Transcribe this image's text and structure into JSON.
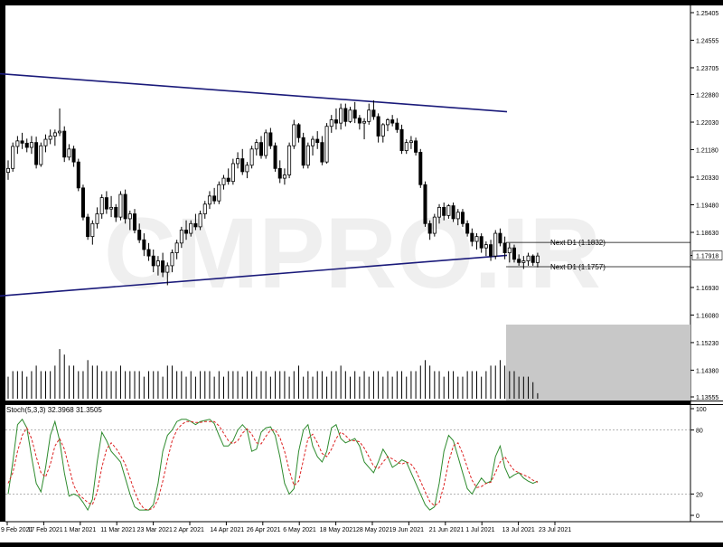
{
  "watermark": "CMPRO.IR",
  "colors": {
    "frame": "#000000",
    "background": "#ffffff",
    "candle": "#000000",
    "trendline": "#1a1a7a",
    "stoch_main": "#2e8b2e",
    "stoch_signal": "#dd2222",
    "level_line": "#9a9a9a",
    "shade": "#c8c8c8",
    "watermark": "#efefef"
  },
  "chart_data": [
    {
      "type": "candlestick",
      "title": "",
      "ylim": [
        1.13555,
        1.25405
      ],
      "ticks": [
        "1.25405",
        "1.24555",
        "1.23705",
        "1.22880",
        "1.22030",
        "1.21180",
        "1.20330",
        "1.19480",
        "1.18630",
        "1.17918",
        "1.16930",
        "1.16080",
        "1.15230",
        "1.14380",
        "1.13555"
      ],
      "current_price": "1.17918",
      "trendlines": [
        {
          "name": "upper",
          "start": [
            0,
            1.2352
          ],
          "end": [
            138,
            1.2235
          ]
        },
        {
          "name": "lower",
          "start": [
            0,
            1.1667
          ],
          "end": [
            138,
            1.1792
          ]
        }
      ],
      "horizontal_lines": [
        {
          "label": "Next D1 (1.1832)",
          "value": 1.1832
        },
        {
          "label": "Next D1 (1.1757)",
          "value": 1.1757
        }
      ],
      "candles": [
        [
          1.2048,
          1.2085,
          1.2025,
          1.206
        ],
        [
          1.206,
          1.214,
          1.205,
          1.2128
        ],
        [
          1.2128,
          1.216,
          1.2105,
          1.2145
        ],
        [
          1.2145,
          1.217,
          1.212,
          1.2138
        ],
        [
          1.2138,
          1.2152,
          1.211,
          1.2125
        ],
        [
          1.2125,
          1.216,
          1.2105,
          1.214
        ],
        [
          1.214,
          1.2158,
          1.206,
          1.2072
        ],
        [
          1.2072,
          1.214,
          1.2065,
          1.213
        ],
        [
          1.213,
          1.2165,
          1.211,
          1.215
        ],
        [
          1.215,
          1.218,
          1.2135,
          1.216
        ],
        [
          1.216,
          1.218,
          1.213,
          1.217
        ],
        [
          1.217,
          1.2245,
          1.216,
          1.2175
        ],
        [
          1.2175,
          1.219,
          1.208,
          1.2095
        ],
        [
          1.2095,
          1.2135,
          1.2085,
          1.212
        ],
        [
          1.212,
          1.213,
          1.2065,
          1.208
        ],
        [
          1.208,
          1.209,
          1.199,
          1.2
        ],
        [
          1.2,
          1.201,
          1.19,
          1.191
        ],
        [
          1.191,
          1.192,
          1.184,
          1.185
        ],
        [
          1.185,
          1.19,
          1.1825,
          1.189
        ],
        [
          1.189,
          1.194,
          1.1875,
          1.192
        ],
        [
          1.192,
          1.198,
          1.1905,
          1.197
        ],
        [
          1.197,
          1.199,
          1.192,
          1.1935
        ],
        [
          1.1935,
          1.1975,
          1.191,
          1.194
        ],
        [
          1.194,
          1.195,
          1.1895,
          1.191
        ],
        [
          1.191,
          1.199,
          1.19,
          1.198
        ],
        [
          1.198,
          1.1995,
          1.189,
          1.1905
        ],
        [
          1.1905,
          1.193,
          1.187,
          1.192
        ],
        [
          1.192,
          1.1935,
          1.186,
          1.187
        ],
        [
          1.187,
          1.189,
          1.183,
          1.184
        ],
        [
          1.184,
          1.186,
          1.179,
          1.181
        ],
        [
          1.181,
          1.183,
          1.1775,
          1.179
        ],
        [
          1.179,
          1.181,
          1.174,
          1.176
        ],
        [
          1.176,
          1.179,
          1.173,
          1.1775
        ],
        [
          1.1775,
          1.18,
          1.1725,
          1.174
        ],
        [
          1.174,
          1.177,
          1.17,
          1.176
        ],
        [
          1.176,
          1.181,
          1.174,
          1.18
        ],
        [
          1.18,
          1.184,
          1.178,
          1.183
        ],
        [
          1.183,
          1.188,
          1.1815,
          1.187
        ],
        [
          1.187,
          1.19,
          1.184,
          1.186
        ],
        [
          1.186,
          1.19,
          1.185,
          1.189
        ],
        [
          1.189,
          1.192,
          1.187,
          1.188
        ],
        [
          1.188,
          1.193,
          1.187,
          1.192
        ],
        [
          1.192,
          1.196,
          1.1905,
          1.195
        ],
        [
          1.195,
          1.199,
          1.1935,
          1.1975
        ],
        [
          1.1975,
          1.2,
          1.195,
          1.196
        ],
        [
          1.196,
          1.202,
          1.195,
          1.201
        ],
        [
          1.201,
          1.204,
          1.1995,
          1.203
        ],
        [
          1.203,
          1.206,
          1.201,
          1.202
        ],
        [
          1.202,
          1.209,
          1.201,
          1.2075
        ],
        [
          1.2075,
          1.211,
          1.206,
          1.209
        ],
        [
          1.209,
          1.212,
          1.204,
          1.205
        ],
        [
          1.205,
          1.208,
          1.203,
          1.207
        ],
        [
          1.207,
          1.213,
          1.206,
          1.212
        ],
        [
          1.212,
          1.215,
          1.21,
          1.214
        ],
        [
          1.214,
          1.216,
          1.209,
          1.21
        ],
        [
          1.21,
          1.218,
          1.209,
          1.217
        ],
        [
          1.217,
          1.2185,
          1.212,
          1.213
        ],
        [
          1.213,
          1.214,
          1.205,
          1.206
        ],
        [
          1.206,
          1.2085,
          1.2015,
          1.203
        ],
        [
          1.203,
          1.206,
          1.201,
          1.204
        ],
        [
          1.204,
          1.214,
          1.203,
          1.213
        ],
        [
          1.213,
          1.221,
          1.212,
          1.2195
        ],
        [
          1.2195,
          1.22,
          1.214,
          1.2155
        ],
        [
          1.2155,
          1.217,
          1.206,
          1.207
        ],
        [
          1.207,
          1.214,
          1.206,
          1.213
        ],
        [
          1.213,
          1.216,
          1.21,
          1.215
        ],
        [
          1.215,
          1.2175,
          1.212,
          1.214
        ],
        [
          1.214,
          1.216,
          1.207,
          1.208
        ],
        [
          1.208,
          1.22,
          1.2075,
          1.219
        ],
        [
          1.219,
          1.2225,
          1.217,
          1.221
        ],
        [
          1.221,
          1.2245,
          1.218,
          1.22
        ],
        [
          1.22,
          1.226,
          1.218,
          1.2245
        ],
        [
          1.2245,
          1.226,
          1.219,
          1.2205
        ],
        [
          1.2205,
          1.225,
          1.22,
          1.224
        ],
        [
          1.224,
          1.2265,
          1.22,
          1.2215
        ],
        [
          1.2215,
          1.2225,
          1.218,
          1.22
        ],
        [
          1.22,
          1.2215,
          1.215,
          1.2205
        ],
        [
          1.2205,
          1.226,
          1.2195,
          1.224
        ],
        [
          1.224,
          1.227,
          1.221,
          1.222
        ],
        [
          1.222,
          1.223,
          1.214,
          1.216
        ],
        [
          1.216,
          1.22,
          1.214,
          1.2195
        ],
        [
          1.2195,
          1.2215,
          1.2175,
          1.221
        ],
        [
          1.221,
          1.2225,
          1.219,
          1.22
        ],
        [
          1.22,
          1.2215,
          1.217,
          1.218
        ],
        [
          1.218,
          1.2195,
          1.2105,
          1.2115
        ],
        [
          1.2115,
          1.215,
          1.2105,
          1.214
        ],
        [
          1.214,
          1.216,
          1.212,
          1.2145
        ],
        [
          1.2145,
          1.2155,
          1.21,
          1.211
        ],
        [
          1.211,
          1.212,
          1.2,
          1.201
        ],
        [
          1.201,
          1.202,
          1.188,
          1.189
        ],
        [
          1.189,
          1.19,
          1.184,
          1.186
        ],
        [
          1.186,
          1.192,
          1.185,
          1.191
        ],
        [
          1.191,
          1.195,
          1.189,
          1.194
        ],
        [
          1.194,
          1.1955,
          1.19,
          1.1915
        ],
        [
          1.1915,
          1.195,
          1.1905,
          1.1945
        ],
        [
          1.1945,
          1.1955,
          1.1895,
          1.1905
        ],
        [
          1.1905,
          1.1935,
          1.1885,
          1.1925
        ],
        [
          1.1925,
          1.1935,
          1.188,
          1.189
        ],
        [
          1.189,
          1.19,
          1.185,
          1.186
        ],
        [
          1.186,
          1.1875,
          1.182,
          1.1835
        ],
        [
          1.1835,
          1.186,
          1.181,
          1.185
        ],
        [
          1.185,
          1.186,
          1.18,
          1.1815
        ],
        [
          1.1815,
          1.1835,
          1.179,
          1.1825
        ],
        [
          1.1825,
          1.184,
          1.1775,
          1.179
        ],
        [
          1.179,
          1.187,
          1.178,
          1.186
        ],
        [
          1.186,
          1.1875,
          1.182,
          1.183
        ],
        [
          1.183,
          1.185,
          1.178,
          1.18
        ],
        [
          1.18,
          1.183,
          1.177,
          1.1815
        ],
        [
          1.1815,
          1.1825,
          1.177,
          1.178
        ],
        [
          1.178,
          1.1795,
          1.176,
          1.177
        ],
        [
          1.177,
          1.179,
          1.175,
          1.1775
        ],
        [
          1.1775,
          1.18,
          1.176,
          1.179
        ],
        [
          1.179,
          1.1795,
          1.176,
          1.177
        ],
        [
          1.177,
          1.18,
          1.1755,
          1.179
        ]
      ],
      "volume": [
        4,
        5,
        5,
        5,
        4,
        5,
        6,
        5,
        5,
        5,
        6,
        9,
        8,
        6,
        6,
        5,
        5,
        7,
        6,
        6,
        5,
        5,
        5,
        5,
        6,
        5,
        5,
        5,
        5,
        4,
        5,
        5,
        5,
        4,
        6,
        6,
        5,
        5,
        4,
        5,
        4,
        5,
        5,
        5,
        4,
        5,
        4,
        5,
        5,
        5,
        4,
        5,
        5,
        4,
        5,
        5,
        4,
        5,
        5,
        5,
        4,
        5,
        6,
        4,
        5,
        4,
        5,
        5,
        4,
        5,
        5,
        6,
        5,
        4,
        5,
        4,
        5,
        4,
        5,
        5,
        4,
        5,
        4,
        5,
        5,
        4,
        5,
        5,
        6,
        7,
        6,
        5,
        5,
        4,
        5,
        5,
        4,
        4,
        5,
        5,
        5,
        4,
        5,
        6,
        6,
        7,
        6,
        5,
        5,
        4,
        4,
        4,
        3,
        1
      ]
    },
    {
      "type": "line",
      "title": "Stoch(5,3,3) 32.3968 31.3505",
      "ylim": [
        0,
        100
      ],
      "ticks": [
        "100",
        "80",
        "20",
        "0"
      ],
      "levels": [
        80,
        20
      ],
      "series": [
        {
          "name": "main",
          "values": [
            20,
            50,
            85,
            90,
            82,
            55,
            30,
            22,
            45,
            75,
            88,
            70,
            40,
            18,
            20,
            18,
            12,
            5,
            15,
            50,
            78,
            70,
            60,
            55,
            50,
            35,
            20,
            8,
            5,
            5,
            5,
            10,
            30,
            60,
            75,
            80,
            88,
            90,
            90,
            88,
            85,
            88,
            89,
            90,
            86,
            75,
            65,
            65,
            70,
            80,
            85,
            80,
            60,
            62,
            78,
            82,
            83,
            75,
            55,
            30,
            20,
            25,
            60,
            80,
            85,
            65,
            55,
            50,
            60,
            82,
            85,
            72,
            68,
            70,
            72,
            65,
            50,
            45,
            40,
            50,
            62,
            55,
            45,
            48,
            52,
            50,
            40,
            30,
            20,
            10,
            5,
            8,
            30,
            60,
            75,
            70,
            55,
            40,
            25,
            20,
            28,
            35,
            30,
            32,
            55,
            65,
            45,
            35,
            38,
            40,
            35,
            32,
            30,
            32
          ]
        },
        {
          "name": "signal",
          "values": [
            30,
            40,
            60,
            75,
            82,
            72,
            55,
            40,
            36,
            48,
            65,
            72,
            62,
            45,
            28,
            20,
            16,
            12,
            10,
            22,
            45,
            62,
            68,
            63,
            56,
            48,
            35,
            22,
            12,
            6,
            5,
            7,
            15,
            32,
            52,
            70,
            80,
            85,
            88,
            88,
            87,
            87,
            88,
            88,
            88,
            84,
            77,
            70,
            67,
            70,
            77,
            81,
            76,
            68,
            67,
            74,
            80,
            80,
            73,
            60,
            42,
            28,
            32,
            52,
            72,
            76,
            68,
            58,
            55,
            62,
            72,
            78,
            75,
            70,
            70,
            69,
            63,
            55,
            46,
            44,
            50,
            55,
            53,
            50,
            48,
            50,
            48,
            42,
            32,
            22,
            13,
            9,
            12,
            28,
            50,
            65,
            68,
            58,
            45,
            33,
            26,
            27,
            30,
            31,
            40,
            50,
            55,
            48,
            42,
            40,
            38,
            36,
            33,
            31
          ]
        }
      ]
    }
  ],
  "x_axis": {
    "labels": [
      "9 Feb 2021",
      "17 Feb 2021",
      "1 Mar 2021",
      "11 Mar 2021",
      "23 Mar 2021",
      "2 Apr 2021",
      "14 Apr 2021",
      "26 Apr 2021",
      "6 May 2021",
      "18 May 2021",
      "28 May 2021",
      "9 Jun 2021",
      "21 Jun 2021",
      "1 Jul 2021",
      "13 Jul 2021",
      "23 Jul 2021"
    ]
  }
}
